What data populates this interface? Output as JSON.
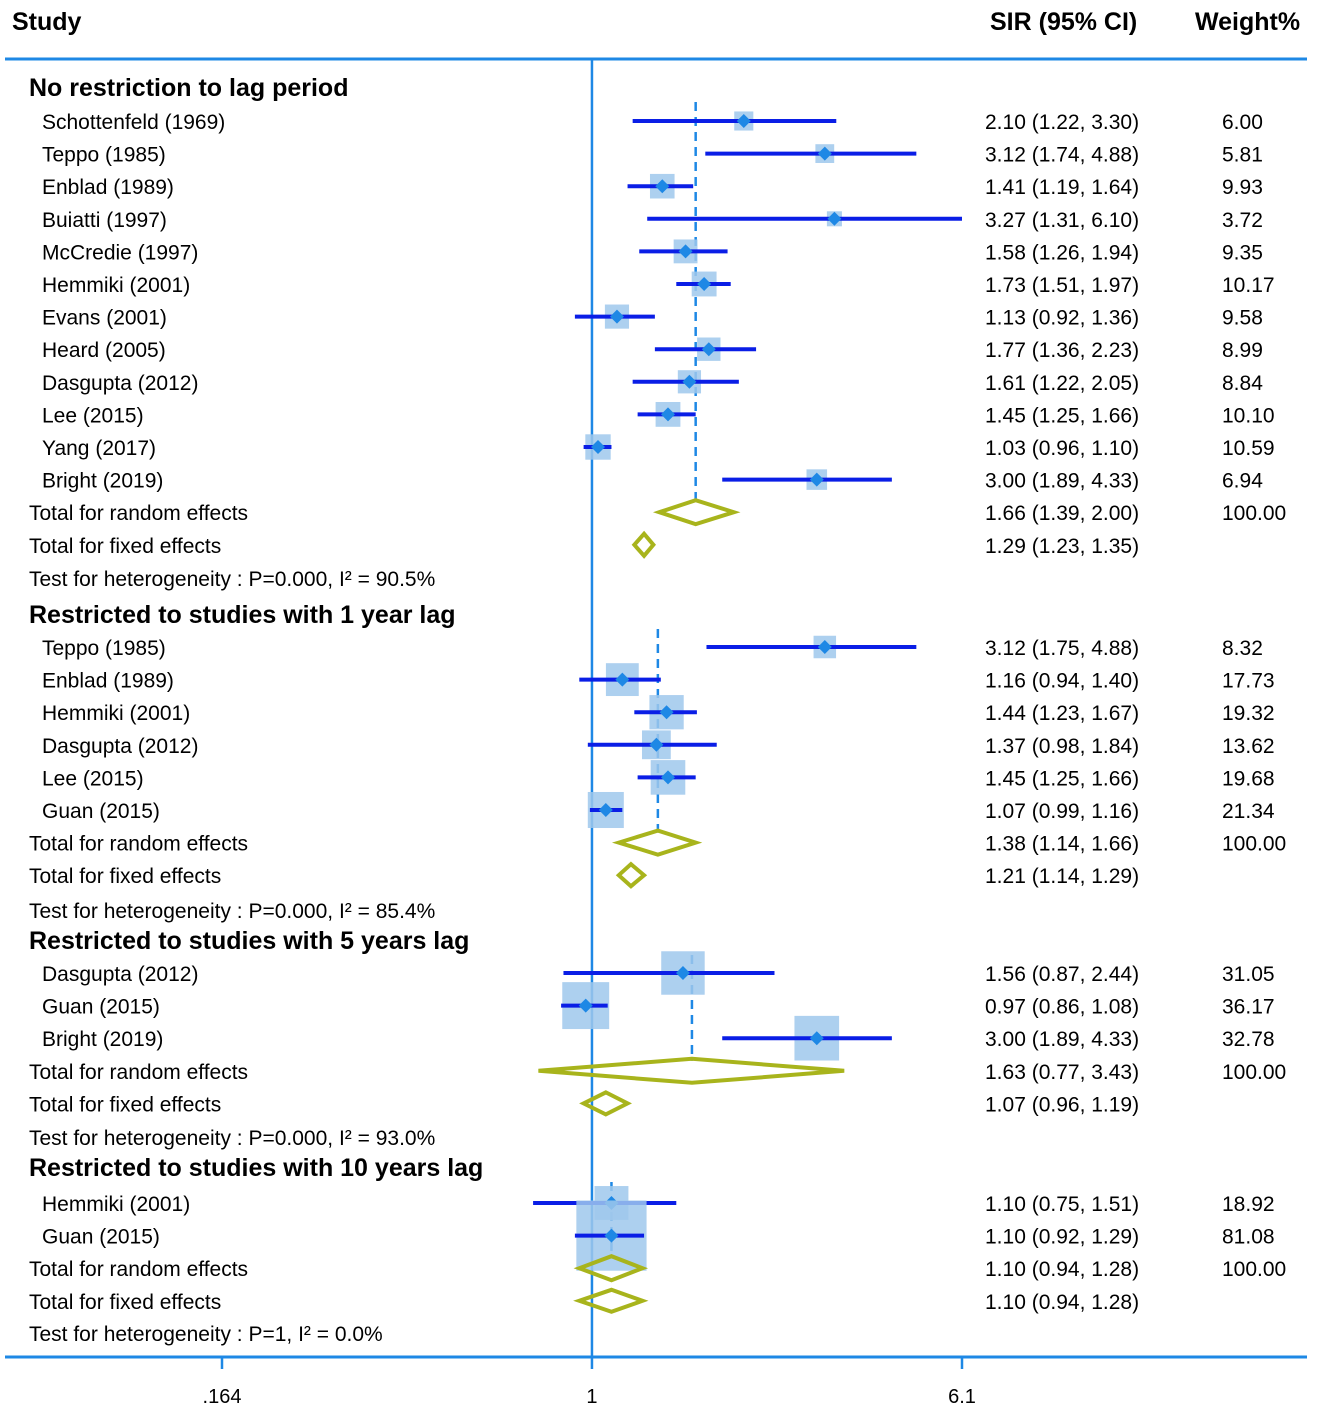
{
  "header": {
    "study": "Study",
    "sir": "SIR (95% CI)",
    "weight": "Weight%"
  },
  "colors": {
    "axis": "#1e88e5",
    "ci_line": "#0a1ee6",
    "point": "#1e88e5",
    "weight_box": "#9fc8ec",
    "diamond": "#a8b41c",
    "ref_line": "#1e88e5"
  },
  "chart_data": {
    "type": "forest",
    "scale": "log",
    "xlim": [
      0.164,
      6.1
    ],
    "x_ticks": [
      {
        "value": 0.164,
        "label": ".164"
      },
      {
        "value": 1,
        "label": "1"
      },
      {
        "value": 6.1,
        "label": "6.1"
      }
    ],
    "groups": [
      {
        "title": "No restriction to lag period",
        "studies": [
          {
            "label": "Schottenfeld (1969)",
            "sir": 2.1,
            "lo": 1.22,
            "hi": 3.3,
            "ci_text": "2.10 (1.22, 3.30)",
            "weight": "6.00"
          },
          {
            "label": "Teppo (1985)",
            "sir": 3.12,
            "lo": 1.74,
            "hi": 4.88,
            "ci_text": "3.12 (1.74, 4.88)",
            "weight": "5.81"
          },
          {
            "label": "Enblad (1989)",
            "sir": 1.41,
            "lo": 1.19,
            "hi": 1.64,
            "ci_text": "1.41 (1.19, 1.64)",
            "weight": "9.93"
          },
          {
            "label": "Buiatti (1997)",
            "sir": 3.27,
            "lo": 1.31,
            "hi": 6.1,
            "ci_text": "3.27 (1.31, 6.10)",
            "weight": "3.72"
          },
          {
            "label": "McCredie (1997)",
            "sir": 1.58,
            "lo": 1.26,
            "hi": 1.94,
            "ci_text": "1.58 (1.26, 1.94)",
            "weight": "9.35"
          },
          {
            "label": "Hemmiki (2001)",
            "sir": 1.73,
            "lo": 1.51,
            "hi": 1.97,
            "ci_text": "1.73 (1.51, 1.97)",
            "weight": "10.17"
          },
          {
            "label": "Evans (2001)",
            "sir": 1.13,
            "lo": 0.92,
            "hi": 1.36,
            "ci_text": "1.13 (0.92, 1.36)",
            "weight": "9.58"
          },
          {
            "label": "Heard (2005)",
            "sir": 1.77,
            "lo": 1.36,
            "hi": 2.23,
            "ci_text": "1.77 (1.36, 2.23)",
            "weight": "8.99"
          },
          {
            "label": "Dasgupta (2012)",
            "sir": 1.61,
            "lo": 1.22,
            "hi": 2.05,
            "ci_text": "1.61 (1.22, 2.05)",
            "weight": "8.84"
          },
          {
            "label": "Lee (2015)",
            "sir": 1.45,
            "lo": 1.25,
            "hi": 1.66,
            "ci_text": "1.45 (1.25, 1.66)",
            "weight": "10.10"
          },
          {
            "label": "Yang (2017)",
            "sir": 1.03,
            "lo": 0.96,
            "hi": 1.1,
            "ci_text": "1.03 (0.96, 1.10)",
            "weight": "10.59"
          },
          {
            "label": "Bright (2019)",
            "sir": 3.0,
            "lo": 1.89,
            "hi": 4.33,
            "ci_text": "3.00 (1.89, 4.33)",
            "weight": "6.94"
          }
        ],
        "random": {
          "label": "Total for random effects",
          "sir": 1.66,
          "lo": 1.39,
          "hi": 2.0,
          "ci_text": "1.66 (1.39, 2.00)",
          "weight": "100.00"
        },
        "fixed": {
          "label": "Total for fixed effects",
          "sir": 1.29,
          "lo": 1.23,
          "hi": 1.35,
          "ci_text": "1.29 (1.23, 1.35)"
        },
        "heterogeneity": "Test for heterogeneity : P=0.000, I² = 90.5%"
      },
      {
        "title": "Restricted to studies with 1 year lag",
        "studies": [
          {
            "label": "Teppo (1985)",
            "sir": 3.12,
            "lo": 1.75,
            "hi": 4.88,
            "ci_text": "3.12 (1.75, 4.88)",
            "weight": "8.32"
          },
          {
            "label": "Enblad (1989)",
            "sir": 1.16,
            "lo": 0.94,
            "hi": 1.4,
            "ci_text": "1.16 (0.94, 1.40)",
            "weight": "17.73"
          },
          {
            "label": "Hemmiki (2001)",
            "sir": 1.44,
            "lo": 1.23,
            "hi": 1.67,
            "ci_text": "1.44 (1.23, 1.67)",
            "weight": "19.32"
          },
          {
            "label": "Dasgupta (2012)",
            "sir": 1.37,
            "lo": 0.98,
            "hi": 1.84,
            "ci_text": "1.37 (0.98, 1.84)",
            "weight": "13.62"
          },
          {
            "label": "Lee (2015)",
            "sir": 1.45,
            "lo": 1.25,
            "hi": 1.66,
            "ci_text": "1.45 (1.25, 1.66)",
            "weight": "19.68"
          },
          {
            "label": "Guan (2015)",
            "sir": 1.07,
            "lo": 0.99,
            "hi": 1.16,
            "ci_text": "1.07 (0.99, 1.16)",
            "weight": "21.34"
          }
        ],
        "random": {
          "label": "Total for random effects",
          "sir": 1.38,
          "lo": 1.14,
          "hi": 1.66,
          "ci_text": "1.38 (1.14, 1.66)",
          "weight": "100.00"
        },
        "fixed": {
          "label": "Total for fixed effects",
          "sir": 1.21,
          "lo": 1.14,
          "hi": 1.29,
          "ci_text": "1.21 (1.14, 1.29)"
        },
        "heterogeneity": "Test for heterogeneity : P=0.000, I² = 85.4%"
      },
      {
        "title": "Restricted to studies with 5 years lag",
        "studies": [
          {
            "label": "Dasgupta (2012)",
            "sir": 1.56,
            "lo": 0.87,
            "hi": 2.44,
            "ci_text": "1.56 (0.87, 2.44)",
            "weight": "31.05"
          },
          {
            "label": "Guan (2015)",
            "sir": 0.97,
            "lo": 0.86,
            "hi": 1.08,
            "ci_text": "0.97 (0.86, 1.08)",
            "weight": "36.17"
          },
          {
            "label": "Bright (2019)",
            "sir": 3.0,
            "lo": 1.89,
            "hi": 4.33,
            "ci_text": "3.00 (1.89, 4.33)",
            "weight": "32.78"
          }
        ],
        "random": {
          "label": "Total for random effects",
          "sir": 1.63,
          "lo": 0.77,
          "hi": 3.43,
          "ci_text": "1.63 (0.77, 3.43)",
          "weight": "100.00"
        },
        "fixed": {
          "label": "Total for fixed effects",
          "sir": 1.07,
          "lo": 0.96,
          "hi": 1.19,
          "ci_text": "1.07 (0.96, 1.19)"
        },
        "heterogeneity": "Test for heterogeneity : P=0.000, I² = 93.0%"
      },
      {
        "title": "Restricted to studies with 10 years lag",
        "studies": [
          {
            "label": "Hemmiki (2001)",
            "sir": 1.1,
            "lo": 0.75,
            "hi": 1.51,
            "ci_text": "1.10 (0.75, 1.51)",
            "weight": "18.92"
          },
          {
            "label": "Guan (2015)",
            "sir": 1.1,
            "lo": 0.92,
            "hi": 1.29,
            "ci_text": "1.10 (0.92, 1.29)",
            "weight": "81.08"
          }
        ],
        "random": {
          "label": "Total for random effects",
          "sir": 1.1,
          "lo": 0.94,
          "hi": 1.28,
          "ci_text": "1.10 (0.94, 1.28)",
          "weight": "100.00"
        },
        "fixed": {
          "label": "Total for fixed effects",
          "sir": 1.1,
          "lo": 0.94,
          "hi": 1.28,
          "ci_text": "1.10 (0.94, 1.28)"
        },
        "heterogeneity": "Test for heterogeneity : P=1, I² = 0.0%"
      }
    ]
  }
}
